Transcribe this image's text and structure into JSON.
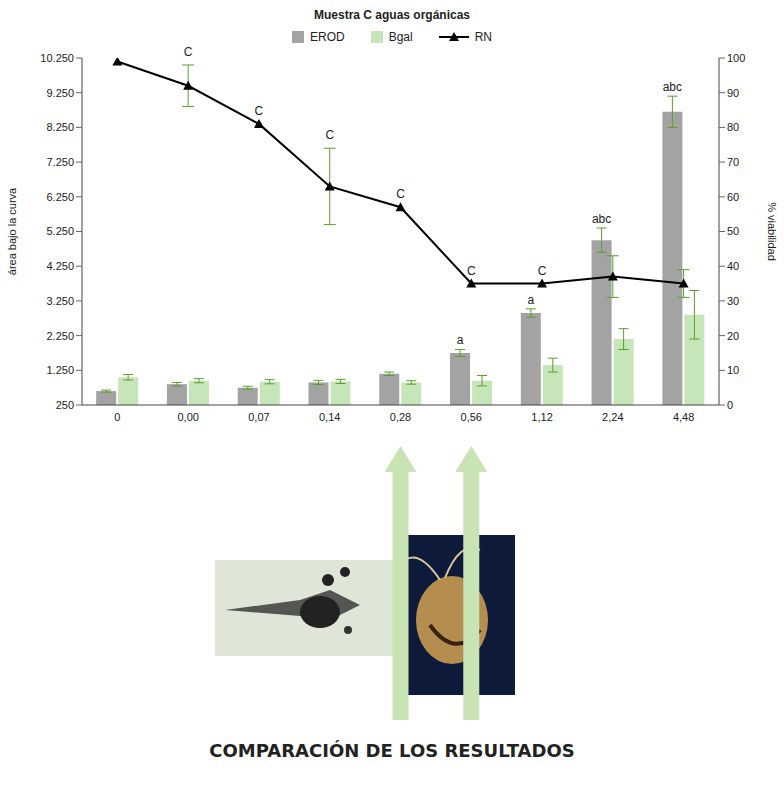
{
  "chart_data": {
    "type": "bar",
    "title": "Muestra C aguas orgánicas",
    "y_label": "área bajo la curva",
    "y2_label": "% viabilidad",
    "categories": [
      "0",
      "0,00",
      "0,07",
      "0,14",
      "0,28",
      "0,56",
      "1,12",
      "2,24",
      "4,48"
    ],
    "series": [
      {
        "name": "EROD",
        "type": "bar",
        "color": "#a3a3a3",
        "values": [
          650,
          850,
          750,
          900,
          1150,
          1750,
          2900,
          5000,
          8700
        ],
        "errors": [
          30,
          50,
          40,
          60,
          50,
          100,
          120,
          350,
          450
        ],
        "annotations": [
          null,
          null,
          null,
          null,
          null,
          "a",
          "a",
          "abc",
          "abc"
        ]
      },
      {
        "name": "Bgal",
        "type": "bar",
        "color": "#c6e6b9",
        "values": [
          1050,
          950,
          920,
          930,
          900,
          950,
          1400,
          2150,
          2850
        ],
        "errors": [
          80,
          60,
          60,
          60,
          50,
          150,
          200,
          300,
          700
        ]
      },
      {
        "name": "RN",
        "type": "line",
        "axis": "y2",
        "color": "#000000",
        "marker": "triangle",
        "values": [
          99,
          92,
          81,
          63,
          57,
          35,
          35,
          37,
          35
        ],
        "errors": [
          0,
          6,
          0,
          11,
          0,
          0,
          0,
          6,
          4
        ],
        "annotations": [
          null,
          "C",
          "C",
          "C",
          "C",
          "C",
          "C",
          null,
          null
        ]
      }
    ],
    "ylim": [
      250,
      10250
    ],
    "yticks": [
      250,
      {
        "value": 1250,
        "label": "1.250"
      },
      {
        "value": 2250,
        "label": "2.250"
      },
      {
        "value": 3250,
        "label": "3.250"
      },
      {
        "value": 4250,
        "label": "4.250"
      },
      {
        "value": 5250,
        "label": "5.250"
      },
      {
        "value": 6250,
        "label": "6.250"
      },
      {
        "value": 7250,
        "label": "7.250"
      },
      {
        "value": 8250,
        "label": "8.250"
      },
      {
        "value": 9250,
        "label": "9.250"
      },
      {
        "value": 10250,
        "label": "10.250"
      }
    ],
    "y2lim": [
      0,
      100
    ],
    "y2ticks": [
      0,
      10,
      20,
      30,
      40,
      50,
      60,
      70,
      80,
      90,
      100
    ],
    "legend": "top"
  },
  "caption": "COMPARACIÓN DE LOS RESULTADOS"
}
